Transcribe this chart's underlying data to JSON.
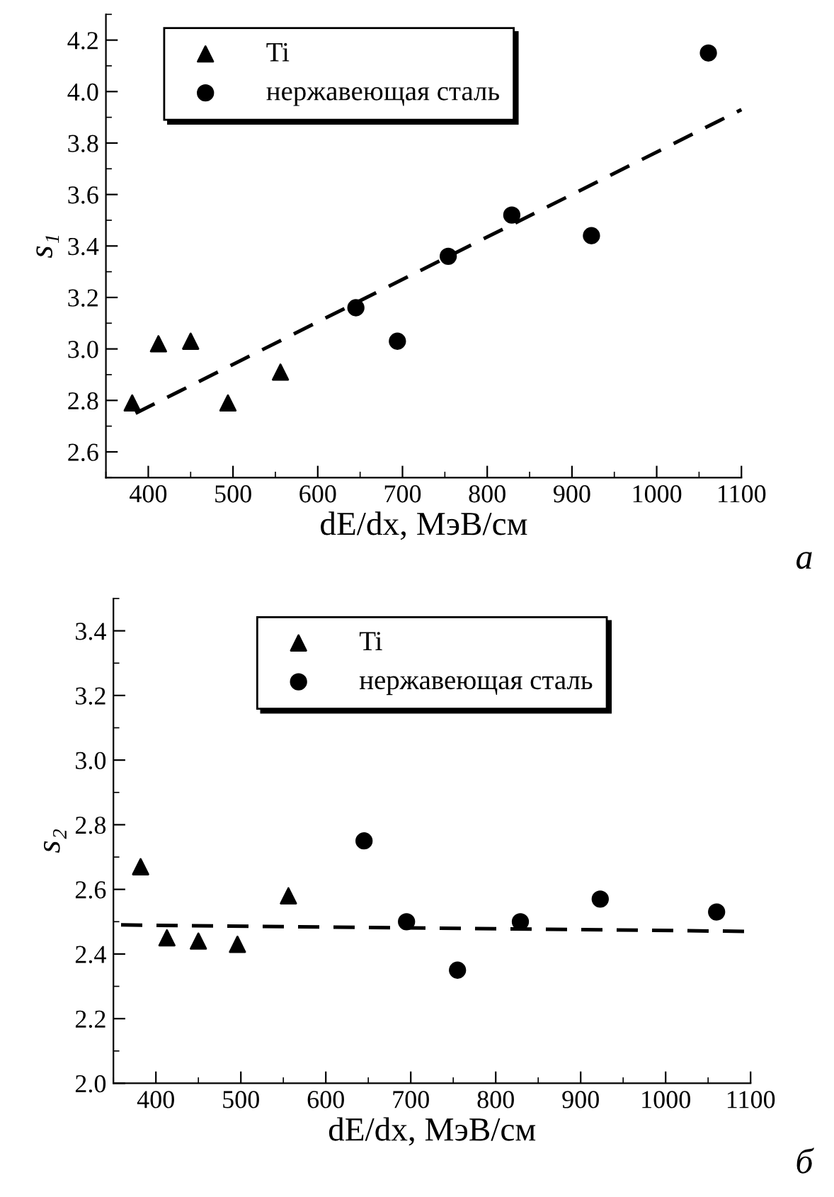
{
  "chart_data": [
    {
      "type": "scatter",
      "xlabel": "dE/dx, МэВ/см",
      "ylabel": "s₁",
      "xlim": [
        350,
        1100
      ],
      "ylim": [
        2.5,
        4.3
      ],
      "xticks": [
        400,
        500,
        600,
        700,
        800,
        900,
        1000,
        1100
      ],
      "yticks": [
        2.6,
        2.8,
        {
          "value": 3,
          "label": "3.0"
        },
        3.2,
        3.4,
        3.6,
        3.8,
        {
          "value": 4,
          "label": "4.0"
        },
        4.2
      ],
      "grid": false,
      "legend": "top left",
      "annotations": [
        "а"
      ],
      "series": [
        {
          "name": "Ti",
          "marker": "triangle",
          "color": "#000000",
          "x": [
            381,
            412,
            450,
            494,
            556
          ],
          "values": [
            2.79,
            3.02,
            3.03,
            2.79,
            2.91
          ]
        },
        {
          "name": "нержавеющая сталь",
          "marker": "circle",
          "color": "#000000",
          "x": [
            645,
            694,
            754,
            829,
            923,
            1061
          ],
          "values": [
            3.16,
            3.03,
            3.36,
            3.52,
            3.44,
            4.15
          ]
        },
        {
          "type": "line",
          "marker": "none",
          "line_style": "dashed",
          "color": "#000000",
          "x": [
            385,
            1100
          ],
          "values": [
            2.75,
            3.93
          ]
        }
      ]
    },
    {
      "type": "scatter",
      "xlabel": "dE/dx, МэВ/см",
      "ylabel": "s₂",
      "xlim": [
        350,
        1100
      ],
      "ylim": [
        2.0,
        3.5
      ],
      "xticks": [
        400,
        500,
        600,
        700,
        800,
        900,
        1000,
        1100
      ],
      "yticks": [
        {
          "value": 2,
          "label": "2.0"
        },
        2.2,
        2.4,
        2.6,
        2.8,
        {
          "value": 3,
          "label": "3.0"
        },
        3.2,
        3.4
      ],
      "grid": false,
      "legend": "top",
      "annotations": [
        "б"
      ],
      "series": [
        {
          "name": "Ti",
          "marker": "triangle",
          "color": "#000000",
          "x": [
            382,
            413,
            450,
            496,
            556
          ],
          "values": [
            2.67,
            2.45,
            2.44,
            2.43,
            2.58
          ]
        },
        {
          "name": "нержавеющая сталь",
          "marker": "circle",
          "color": "#000000",
          "x": [
            645,
            695,
            755,
            829,
            923,
            1060
          ],
          "values": [
            2.75,
            2.5,
            2.35,
            2.5,
            2.57,
            2.53
          ]
        },
        {
          "type": "line",
          "marker": "none",
          "line_style": "dashed",
          "color": "#000000",
          "x": [
            359,
            1100
          ],
          "values": [
            2.49,
            2.47
          ]
        }
      ]
    }
  ]
}
